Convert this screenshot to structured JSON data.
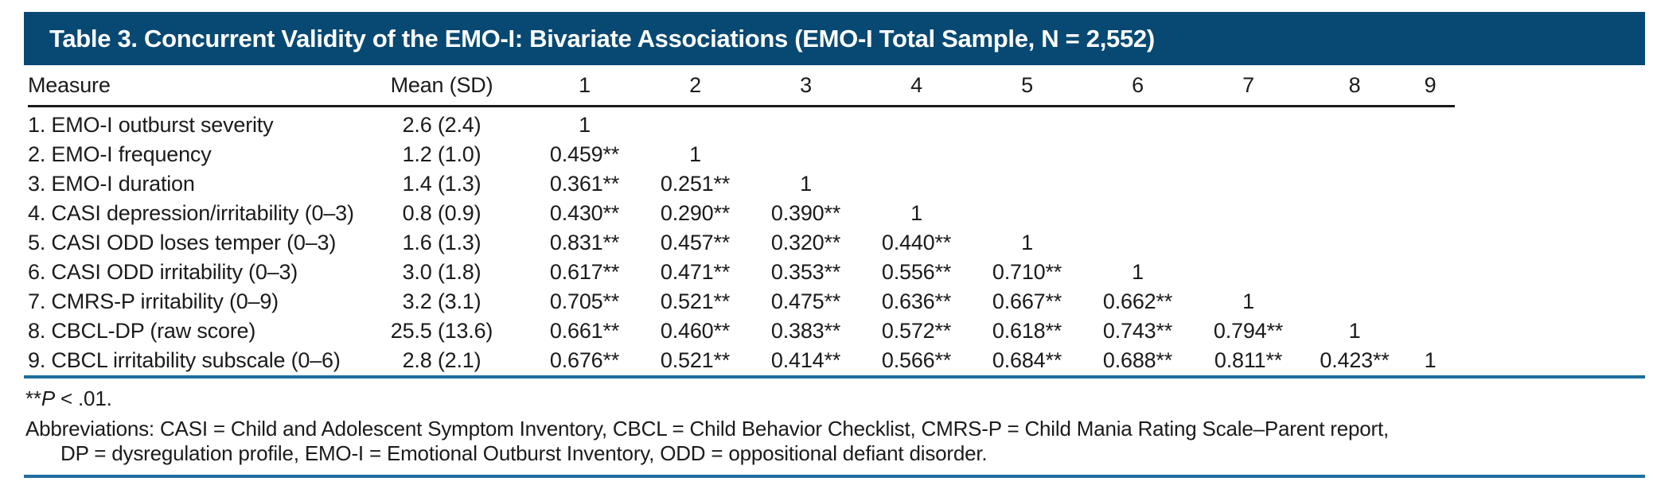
{
  "title": "Table 3. Concurrent Validity of the EMO-I: Bivariate Associations (EMO-I Total Sample, N = 2,552)",
  "table": {
    "columns": [
      "Measure",
      "Mean (SD)",
      "1",
      "2",
      "3",
      "4",
      "5",
      "6",
      "7",
      "8",
      "9"
    ],
    "rows": [
      {
        "measure": "1. EMO-I outburst severity",
        "mean_sd": "2.6 (2.4)",
        "correlations": [
          "1",
          "",
          "",
          "",
          "",
          "",
          "",
          "",
          ""
        ]
      },
      {
        "measure": "2. EMO-I frequency",
        "mean_sd": "1.2 (1.0)",
        "correlations": [
          "0.459**",
          "1",
          "",
          "",
          "",
          "",
          "",
          "",
          ""
        ]
      },
      {
        "measure": "3. EMO-I duration",
        "mean_sd": "1.4 (1.3)",
        "correlations": [
          "0.361**",
          "0.251**",
          "1",
          "",
          "",
          "",
          "",
          "",
          ""
        ]
      },
      {
        "measure": "4. CASI depression/irritability (0–3)",
        "mean_sd": "0.8 (0.9)",
        "correlations": [
          "0.430**",
          "0.290**",
          "0.390**",
          "1",
          "",
          "",
          "",
          "",
          ""
        ]
      },
      {
        "measure": "5. CASI ODD loses temper (0–3)",
        "mean_sd": "1.6 (1.3)",
        "correlations": [
          "0.831**",
          "0.457**",
          "0.320**",
          "0.440**",
          "1",
          "",
          "",
          "",
          ""
        ]
      },
      {
        "measure": "6. CASI ODD irritability (0–3)",
        "mean_sd": "3.0 (1.8)",
        "correlations": [
          "0.617**",
          "0.471**",
          "0.353**",
          "0.556**",
          "0.710**",
          "1",
          "",
          "",
          ""
        ]
      },
      {
        "measure": "7. CMRS-P irritability (0–9)",
        "mean_sd": "3.2 (3.1)",
        "correlations": [
          "0.705**",
          "0.521**",
          "0.475**",
          "0.636**",
          "0.667**",
          "0.662**",
          "1",
          "",
          ""
        ]
      },
      {
        "measure": "8. CBCL-DP (raw score)",
        "mean_sd": "25.5 (13.6)",
        "correlations": [
          "0.661**",
          "0.460**",
          "0.383**",
          "0.572**",
          "0.618**",
          "0.743**",
          "0.794**",
          "1",
          ""
        ]
      },
      {
        "measure": "9. CBCL irritability subscale (0–6)",
        "mean_sd": "2.8 (2.1)",
        "correlations": [
          "0.676**",
          "0.521**",
          "0.414**",
          "0.566**",
          "0.684**",
          "0.688**",
          "0.811**",
          "0.423**",
          "1"
        ]
      }
    ]
  },
  "footnotes": {
    "sig_stars": "**",
    "sig_p": "P",
    "sig_rest": " < .01.",
    "abbreviations_line1": "Abbreviations: CASI = Child and Adolescent Symptom Inventory, CBCL = Child Behavior Checklist, CMRS-P = Child Mania Rating Scale–Parent report,",
    "abbreviations_line2": "DP = dysregulation profile, EMO-I = Emotional Outburst Inventory, ODD = oppositional defiant disorder."
  },
  "colors": {
    "title_bar_background": "#074972",
    "title_text": "#ffffff",
    "rule_blue": "#1e6d9e",
    "header_rule_black": "#1a1a1a",
    "body_text": "#1b1b1b"
  }
}
